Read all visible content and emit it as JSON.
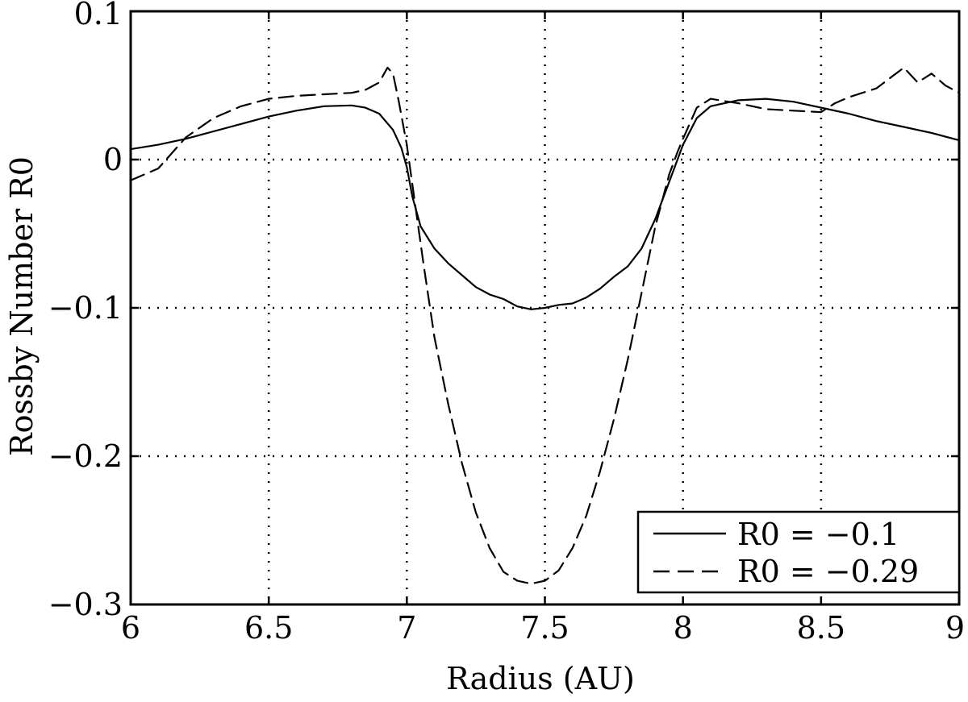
{
  "chart_data": {
    "type": "line",
    "title": "",
    "xlabel": "Radius (AU)",
    "ylabel": "Rossby Number R0",
    "xlim": [
      6,
      9
    ],
    "ylim": [
      -0.3,
      0.1
    ],
    "xticks": [
      6,
      6.5,
      7,
      7.5,
      8,
      8.5,
      9
    ],
    "xtick_labels": [
      "6",
      "6.5",
      "7",
      "7.5",
      "8",
      "8.5",
      "9"
    ],
    "yticks": [
      0.1,
      0,
      -0.1,
      -0.2,
      -0.3
    ],
    "ytick_labels": [
      "0.1",
      "0",
      "−0.1",
      "−0.2",
      "−0.3"
    ],
    "grid": true,
    "legend_position": "bottom-right",
    "series": [
      {
        "name": "R0 = −0.1",
        "style": "solid",
        "color": "#000000",
        "x": [
          6.0,
          6.1,
          6.2,
          6.3,
          6.4,
          6.5,
          6.6,
          6.7,
          6.8,
          6.85,
          6.9,
          6.95,
          6.98,
          7.0,
          7.02,
          7.05,
          7.1,
          7.15,
          7.2,
          7.25,
          7.3,
          7.35,
          7.4,
          7.45,
          7.5,
          7.55,
          7.6,
          7.65,
          7.7,
          7.75,
          7.8,
          7.85,
          7.9,
          7.95,
          8.0,
          8.05,
          8.1,
          8.2,
          8.3,
          8.4,
          8.5,
          8.6,
          8.7,
          8.8,
          8.9,
          9.0
        ],
        "y": [
          0.007,
          0.01,
          0.014,
          0.019,
          0.024,
          0.029,
          0.033,
          0.036,
          0.0365,
          0.035,
          0.031,
          0.02,
          0.008,
          -0.005,
          -0.025,
          -0.045,
          -0.06,
          -0.07,
          -0.078,
          -0.086,
          -0.091,
          -0.094,
          -0.099,
          -0.101,
          -0.1,
          -0.098,
          -0.097,
          -0.093,
          -0.087,
          -0.079,
          -0.072,
          -0.06,
          -0.04,
          -0.015,
          0.01,
          0.028,
          0.036,
          0.04,
          0.041,
          0.039,
          0.035,
          0.031,
          0.026,
          0.022,
          0.018,
          0.013
        ]
      },
      {
        "name": "R0 = −0.29",
        "style": "dashed",
        "color": "#000000",
        "x": [
          6.0,
          6.1,
          6.2,
          6.3,
          6.4,
          6.5,
          6.6,
          6.7,
          6.8,
          6.85,
          6.88,
          6.9,
          6.93,
          6.95,
          6.97,
          7.0,
          7.03,
          7.06,
          7.1,
          7.15,
          7.2,
          7.25,
          7.3,
          7.35,
          7.4,
          7.45,
          7.5,
          7.55,
          7.6,
          7.65,
          7.7,
          7.75,
          7.8,
          7.85,
          7.9,
          7.95,
          7.98,
          8.0,
          8.05,
          8.1,
          8.2,
          8.3,
          8.4,
          8.5,
          8.55,
          8.6,
          8.7,
          8.75,
          8.8,
          8.85,
          8.9,
          8.95,
          9.0
        ],
        "y": [
          -0.014,
          -0.006,
          0.015,
          0.028,
          0.036,
          0.041,
          0.043,
          0.044,
          0.045,
          0.047,
          0.05,
          0.052,
          0.062,
          0.058,
          0.04,
          0.01,
          -0.03,
          -0.07,
          -0.12,
          -0.165,
          -0.205,
          -0.238,
          -0.262,
          -0.278,
          -0.284,
          -0.286,
          -0.284,
          -0.277,
          -0.262,
          -0.24,
          -0.21,
          -0.175,
          -0.135,
          -0.09,
          -0.045,
          -0.01,
          0.005,
          0.014,
          0.035,
          0.041,
          0.038,
          0.034,
          0.033,
          0.032,
          0.038,
          0.042,
          0.048,
          0.055,
          0.062,
          0.052,
          0.058,
          0.05,
          0.045
        ]
      }
    ]
  }
}
